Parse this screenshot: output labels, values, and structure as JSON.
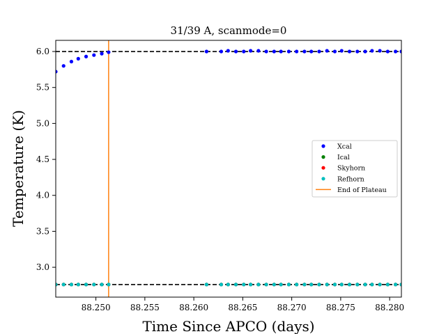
{
  "chart_data": {
    "type": "scatter",
    "title": "31/39 A, scanmode=0",
    "xlabel": "Time Since APCO (days)",
    "ylabel": "Temperature (K)",
    "xlim": [
      88.2459,
      88.2812
    ],
    "ylim": [
      2.585,
      6.155
    ],
    "xticks": [
      88.25,
      88.255,
      88.26,
      88.265,
      88.27,
      88.275,
      88.28
    ],
    "xtick_labels": [
      "88.250",
      "88.255",
      "88.260",
      "88.265",
      "88.270",
      "88.275",
      "88.280"
    ],
    "yticks": [
      3.0,
      3.5,
      4.0,
      4.5,
      5.0,
      5.5,
      6.0
    ],
    "ytick_labels": [
      "3.0",
      "3.5",
      "4.0",
      "4.5",
      "5.0",
      "5.5",
      "6.0"
    ],
    "grid": false,
    "legend_position": "center-right",
    "series": [
      {
        "name": "Xcal",
        "color": "#0000ff",
        "points": [
          [
            88.2459,
            5.72
          ],
          [
            88.2467,
            5.8
          ],
          [
            88.2475,
            5.86
          ],
          [
            88.2482,
            5.9
          ],
          [
            88.249,
            5.93
          ],
          [
            88.2498,
            5.95
          ],
          [
            88.2506,
            5.97
          ],
          [
            88.2513,
            5.99
          ],
          [
            88.2613,
            6.0
          ],
          [
            88.2628,
            6.0
          ],
          [
            88.2635,
            6.01
          ],
          [
            88.2643,
            6.0
          ],
          [
            88.2651,
            6.0
          ],
          [
            88.2658,
            6.01
          ],
          [
            88.2666,
            6.01
          ],
          [
            88.2674,
            6.0
          ],
          [
            88.2682,
            6.0
          ],
          [
            88.2689,
            6.0
          ],
          [
            88.2697,
            6.0
          ],
          [
            88.2705,
            6.0
          ],
          [
            88.2713,
            6.0
          ],
          [
            88.272,
            6.0
          ],
          [
            88.2728,
            6.0
          ],
          [
            88.2736,
            6.01
          ],
          [
            88.2744,
            6.0
          ],
          [
            88.2751,
            6.01
          ],
          [
            88.2759,
            6.0
          ],
          [
            88.2767,
            6.0
          ],
          [
            88.2775,
            6.0
          ],
          [
            88.2782,
            6.01
          ],
          [
            88.279,
            6.01
          ],
          [
            88.2798,
            6.0
          ],
          [
            88.2806,
            6.0
          ],
          [
            88.2812,
            6.0
          ]
        ]
      },
      {
        "name": "Ical",
        "color": "#008000",
        "points": [
          [
            88.2459,
            2.76
          ],
          [
            88.2467,
            2.76
          ],
          [
            88.2475,
            2.76
          ],
          [
            88.2482,
            2.76
          ],
          [
            88.249,
            2.76
          ],
          [
            88.2498,
            2.76
          ],
          [
            88.2506,
            2.76
          ],
          [
            88.2513,
            2.76
          ],
          [
            88.2613,
            2.76
          ],
          [
            88.2628,
            2.76
          ],
          [
            88.2635,
            2.76
          ],
          [
            88.2643,
            2.76
          ],
          [
            88.2651,
            2.76
          ],
          [
            88.2658,
            2.76
          ],
          [
            88.2666,
            2.76
          ],
          [
            88.2674,
            2.76
          ],
          [
            88.2682,
            2.76
          ],
          [
            88.2689,
            2.76
          ],
          [
            88.2697,
            2.76
          ],
          [
            88.2705,
            2.76
          ],
          [
            88.2713,
            2.76
          ],
          [
            88.272,
            2.76
          ],
          [
            88.2728,
            2.76
          ],
          [
            88.2736,
            2.76
          ],
          [
            88.2744,
            2.76
          ],
          [
            88.2751,
            2.76
          ],
          [
            88.2759,
            2.76
          ],
          [
            88.2767,
            2.76
          ],
          [
            88.2775,
            2.76
          ],
          [
            88.2782,
            2.76
          ],
          [
            88.279,
            2.76
          ],
          [
            88.2798,
            2.76
          ],
          [
            88.2806,
            2.76
          ],
          [
            88.2812,
            2.76
          ]
        ]
      },
      {
        "name": "Skyhorn",
        "color": "#ff0000",
        "points": [
          [
            88.2459,
            2.76
          ],
          [
            88.2467,
            2.76
          ],
          [
            88.2475,
            2.76
          ],
          [
            88.2482,
            2.76
          ],
          [
            88.249,
            2.76
          ],
          [
            88.2498,
            2.76
          ],
          [
            88.2506,
            2.76
          ],
          [
            88.2513,
            2.76
          ],
          [
            88.2613,
            2.76
          ],
          [
            88.2628,
            2.76
          ],
          [
            88.2635,
            2.76
          ],
          [
            88.2643,
            2.76
          ],
          [
            88.2651,
            2.76
          ],
          [
            88.2658,
            2.76
          ],
          [
            88.2666,
            2.76
          ],
          [
            88.2674,
            2.76
          ],
          [
            88.2682,
            2.76
          ],
          [
            88.2689,
            2.76
          ],
          [
            88.2697,
            2.76
          ],
          [
            88.2705,
            2.76
          ],
          [
            88.2713,
            2.76
          ],
          [
            88.272,
            2.76
          ],
          [
            88.2728,
            2.76
          ],
          [
            88.2736,
            2.76
          ],
          [
            88.2744,
            2.76
          ],
          [
            88.2751,
            2.76
          ],
          [
            88.2759,
            2.76
          ],
          [
            88.2767,
            2.76
          ],
          [
            88.2775,
            2.76
          ],
          [
            88.2782,
            2.76
          ],
          [
            88.279,
            2.76
          ],
          [
            88.2798,
            2.76
          ],
          [
            88.2806,
            2.76
          ],
          [
            88.2812,
            2.76
          ]
        ]
      },
      {
        "name": "Refhorn",
        "color": "#00bfbf",
        "points": [
          [
            88.2459,
            2.76
          ],
          [
            88.2467,
            2.76
          ],
          [
            88.2475,
            2.76
          ],
          [
            88.2482,
            2.76
          ],
          [
            88.249,
            2.76
          ],
          [
            88.2498,
            2.76
          ],
          [
            88.2506,
            2.76
          ],
          [
            88.2513,
            2.76
          ],
          [
            88.2613,
            2.76
          ],
          [
            88.2628,
            2.76
          ],
          [
            88.2635,
            2.76
          ],
          [
            88.2643,
            2.76
          ],
          [
            88.2651,
            2.76
          ],
          [
            88.2658,
            2.76
          ],
          [
            88.2666,
            2.76
          ],
          [
            88.2674,
            2.76
          ],
          [
            88.2682,
            2.76
          ],
          [
            88.2689,
            2.76
          ],
          [
            88.2697,
            2.76
          ],
          [
            88.2705,
            2.76
          ],
          [
            88.2713,
            2.76
          ],
          [
            88.272,
            2.76
          ],
          [
            88.2728,
            2.76
          ],
          [
            88.2736,
            2.76
          ],
          [
            88.2744,
            2.76
          ],
          [
            88.2751,
            2.76
          ],
          [
            88.2759,
            2.76
          ],
          [
            88.2767,
            2.76
          ],
          [
            88.2775,
            2.76
          ],
          [
            88.2782,
            2.76
          ],
          [
            88.279,
            2.76
          ],
          [
            88.2798,
            2.76
          ],
          [
            88.2806,
            2.76
          ],
          [
            88.2812,
            2.76
          ]
        ]
      }
    ],
    "reference_lines": [
      {
        "kind": "horizontal",
        "style": "dashed",
        "color": "#000000",
        "y": 6.0
      },
      {
        "kind": "horizontal",
        "style": "dashed",
        "color": "#000000",
        "y": 2.76
      }
    ],
    "vertical_lines": [
      {
        "name": "End of Plateau",
        "color": "#ff7f0e",
        "x": 88.2513
      }
    ]
  }
}
